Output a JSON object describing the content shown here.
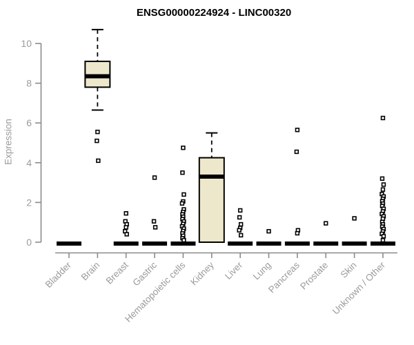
{
  "header": {
    "title": "ENSG00000224924 - LINC00320"
  },
  "colors": {
    "background": "#ffffff",
    "box_fill": "#EDE7CC",
    "box_stroke": "#000000",
    "axis_line": "#8A8A8A",
    "muted_text": "#9B9B9B",
    "title_text": "#000000"
  },
  "chart_data": {
    "type": "boxplot",
    "title": "ENSG00000224924 - LINC00320",
    "xlabel": "",
    "ylabel": "Expression",
    "ylim": [
      0,
      10
    ],
    "yticks": [
      0,
      2,
      4,
      6,
      8,
      10
    ],
    "grid": false,
    "legend": null,
    "categories": [
      "Bladder",
      "Brain",
      "Breast",
      "Gastric",
      "Hematopoietic cells",
      "Kidney",
      "Liver",
      "Lung",
      "Pancreas",
      "Prostate",
      "Skin",
      "Unknown / Other"
    ],
    "boxes": [
      {
        "label": "Bladder",
        "q1": 0,
        "median": 0,
        "q3": 0,
        "whisker_low": 0,
        "whisker_high": 0,
        "outliers": []
      },
      {
        "label": "Brain",
        "q1": 7.8,
        "median": 8.35,
        "q3": 9.1,
        "whisker_low": 6.65,
        "whisker_high": 10.7,
        "outliers": [
          5.55,
          5.1,
          4.1
        ]
      },
      {
        "label": "Breast",
        "q1": 0,
        "median": 0,
        "q3": 0,
        "whisker_low": 0,
        "whisker_high": 0,
        "outliers": [
          1.45,
          1.05,
          0.9,
          0.75,
          0.55,
          0.4
        ]
      },
      {
        "label": "Gastric",
        "q1": 0,
        "median": 0,
        "q3": 0,
        "whisker_low": 0,
        "whisker_high": 0,
        "outliers": [
          3.25,
          1.05,
          0.75
        ]
      },
      {
        "label": "Hematopoietic cells",
        "q1": 0,
        "median": 0,
        "q3": 0,
        "whisker_low": 0,
        "whisker_high": 0,
        "outliers": [
          4.75,
          3.5,
          2.4,
          2.05,
          1.95,
          1.65,
          1.52,
          1.4,
          1.28,
          1.16,
          1.04,
          0.92,
          0.8,
          0.68,
          0.56,
          0.44,
          0.32,
          0.2,
          0.1
        ]
      },
      {
        "label": "Kidney",
        "q1": 0,
        "median": 3.3,
        "q3": 4.25,
        "whisker_low": 0,
        "whisker_high": 5.5,
        "outliers": []
      },
      {
        "label": "Liver",
        "q1": 0,
        "median": 0,
        "q3": 0,
        "whisker_low": 0,
        "whisker_high": 0,
        "outliers": [
          1.6,
          1.25,
          0.9,
          0.72,
          0.6,
          0.35
        ]
      },
      {
        "label": "Lung",
        "q1": 0,
        "median": 0,
        "q3": 0,
        "whisker_low": 0,
        "whisker_high": 0,
        "outliers": [
          0.55
        ]
      },
      {
        "label": "Pancreas",
        "q1": 0,
        "median": 0,
        "q3": 0,
        "whisker_low": 0,
        "whisker_high": 0,
        "outliers": [
          5.65,
          4.55,
          0.6,
          0.45
        ]
      },
      {
        "label": "Prostate",
        "q1": 0,
        "median": 0,
        "q3": 0,
        "whisker_low": 0,
        "whisker_high": 0,
        "outliers": [
          0.95
        ]
      },
      {
        "label": "Skin",
        "q1": 0,
        "median": 0,
        "q3": 0,
        "whisker_low": 0,
        "whisker_high": 0,
        "outliers": [
          1.2
        ]
      },
      {
        "label": "Unknown / Other",
        "q1": 0,
        "median": 0,
        "q3": 0,
        "whisker_low": 0,
        "whisker_high": 0,
        "outliers": [
          6.25,
          3.2,
          2.9,
          2.65,
          2.42,
          2.3,
          2.18,
          2.06,
          1.94,
          1.82,
          1.68,
          1.55,
          1.42,
          1.3,
          1.18,
          1.02,
          0.9,
          0.78,
          0.66,
          0.54,
          0.42,
          0.3,
          0.1
        ]
      }
    ]
  }
}
